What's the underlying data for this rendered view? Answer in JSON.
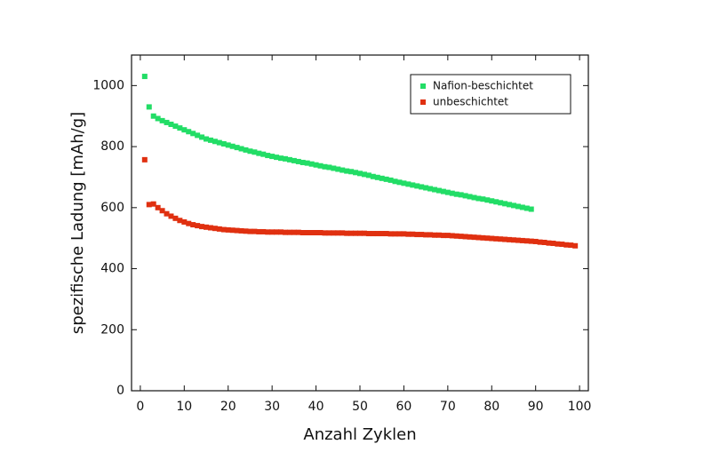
{
  "chart_data": {
    "type": "scatter",
    "xlabel": "Anzahl Zyklen",
    "ylabel": "spezifische Ladung [mAh/g]",
    "xlim": [
      -2,
      102
    ],
    "xticks": [
      0,
      10,
      20,
      30,
      40,
      50,
      60,
      70,
      80,
      90,
      100
    ],
    "ylim": [
      0,
      1100
    ],
    "yticks": [
      0,
      200,
      400,
      600,
      800,
      1000
    ],
    "legend": "upper right",
    "series": [
      {
        "name": "Nafion-beschichtet",
        "color": "#22dd66",
        "x": [
          1,
          2,
          3,
          4,
          5,
          6,
          7,
          8,
          9,
          10,
          11,
          12,
          13,
          14,
          15,
          16,
          17,
          18,
          19,
          20,
          21,
          22,
          23,
          24,
          25,
          26,
          27,
          28,
          29,
          30,
          31,
          32,
          33,
          34,
          35,
          36,
          37,
          38,
          39,
          40,
          41,
          42,
          43,
          44,
          45,
          46,
          47,
          48,
          49,
          50,
          51,
          52,
          53,
          54,
          55,
          56,
          57,
          58,
          59,
          60,
          61,
          62,
          63,
          64,
          65,
          66,
          67,
          68,
          69,
          70,
          71,
          72,
          73,
          74,
          75,
          76,
          77,
          78,
          79,
          80,
          81,
          82,
          83,
          84,
          85,
          86,
          87,
          88,
          89
        ],
        "values": [
          1030,
          930,
          900,
          892,
          885,
          879,
          873,
          867,
          861,
          855,
          849,
          843,
          837,
          831,
          825,
          821,
          817,
          813,
          809,
          805,
          801,
          797,
          793,
          789,
          785,
          782,
          778,
          775,
          771,
          768,
          765,
          762,
          760,
          757,
          754,
          751,
          748,
          746,
          743,
          740,
          737,
          734,
          732,
          729,
          726,
          723,
          720,
          718,
          715,
          712,
          709,
          706,
          702,
          699,
          696,
          693,
          690,
          686,
          683,
          680,
          677,
          674,
          671,
          668,
          665,
          662,
          659,
          656,
          653,
          650,
          647,
          644,
          642,
          639,
          636,
          633,
          630,
          628,
          625,
          622,
          619,
          616,
          613,
          610,
          607,
          604,
          601,
          598,
          595
        ]
      },
      {
        "name": "unbeschichtet",
        "color": "#e03010",
        "x": [
          1,
          2,
          3,
          4,
          5,
          6,
          7,
          8,
          9,
          10,
          11,
          12,
          13,
          14,
          15,
          16,
          17,
          18,
          19,
          20,
          21,
          22,
          23,
          24,
          25,
          26,
          27,
          28,
          29,
          30,
          31,
          32,
          33,
          34,
          35,
          36,
          37,
          38,
          39,
          40,
          41,
          42,
          43,
          44,
          45,
          46,
          47,
          48,
          49,
          50,
          51,
          52,
          53,
          54,
          55,
          56,
          57,
          58,
          59,
          60,
          61,
          62,
          63,
          64,
          65,
          66,
          67,
          68,
          69,
          70,
          71,
          72,
          73,
          74,
          75,
          76,
          77,
          78,
          79,
          80,
          81,
          82,
          83,
          84,
          85,
          86,
          87,
          88,
          89,
          90,
          91,
          92,
          93,
          94,
          95,
          96,
          97,
          98,
          99
        ],
        "values": [
          757,
          610,
          612,
          600,
          590,
          580,
          572,
          565,
          558,
          553,
          548,
          544,
          541,
          538,
          536,
          534,
          532,
          530,
          528,
          527,
          526,
          525,
          524,
          523,
          522,
          522,
          521,
          521,
          520,
          520,
          520,
          520,
          519,
          519,
          519,
          519,
          518,
          518,
          518,
          518,
          518,
          517,
          517,
          517,
          517,
          517,
          516,
          516,
          516,
          516,
          516,
          515,
          515,
          515,
          515,
          515,
          514,
          514,
          514,
          514,
          513,
          513,
          512,
          512,
          511,
          511,
          510,
          510,
          509,
          509,
          508,
          507,
          506,
          505,
          504,
          503,
          502,
          501,
          500,
          499,
          498,
          497,
          496,
          495,
          494,
          493,
          492,
          491,
          490,
          489,
          487,
          486,
          484,
          483,
          481,
          480,
          478,
          477,
          475
        ]
      }
    ]
  }
}
